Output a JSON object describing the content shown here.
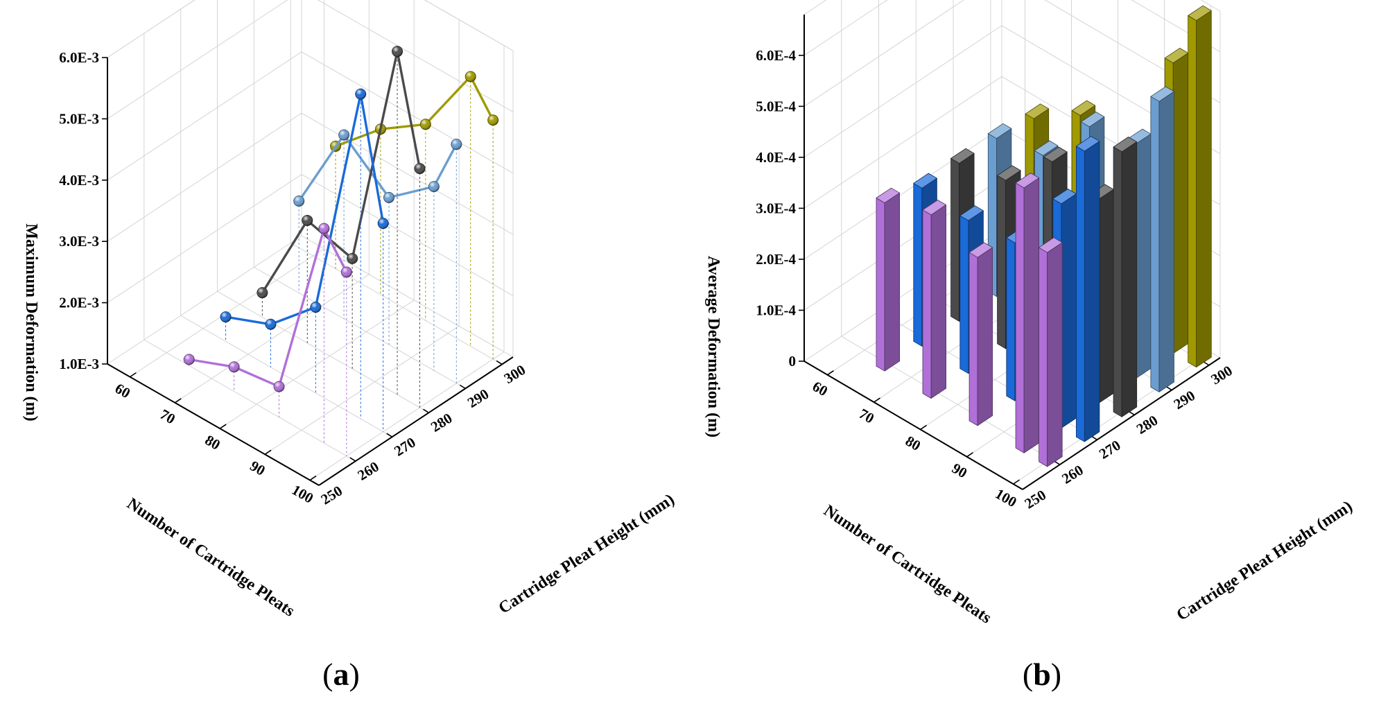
{
  "chart_data": [
    {
      "panel": "(a)",
      "panel_letter": "a",
      "type": "line",
      "projection": "3d",
      "xlabel": "Number of Cartridge Pleats",
      "ylabel": "Cartridge Pleat Height (mm)",
      "zlabel": "Maximum Deformation (m)",
      "x_ticks": [
        {
          "value": 60,
          "label": "60"
        },
        {
          "value": 70,
          "label": "70"
        },
        {
          "value": 80,
          "label": "80"
        },
        {
          "value": 90,
          "label": "90"
        },
        {
          "value": 100,
          "label": "100"
        }
      ],
      "y_ticks": [
        {
          "value": 250,
          "label": "250"
        },
        {
          "value": 260,
          "label": "260"
        },
        {
          "value": 270,
          "label": "270"
        },
        {
          "value": 280,
          "label": "280"
        },
        {
          "value": 290,
          "label": "290"
        },
        {
          "value": 300,
          "label": "300"
        }
      ],
      "z_ticks": [
        {
          "value": 0.001,
          "label": "1.0E-3"
        },
        {
          "value": 0.002,
          "label": "2.0E-3"
        },
        {
          "value": 0.003,
          "label": "3.0E-3"
        },
        {
          "value": 0.004,
          "label": "4.0E-3"
        },
        {
          "value": 0.005,
          "label": "5.0E-3"
        },
        {
          "value": 0.006,
          "label": "6.0E-3"
        }
      ],
      "xlim": [
        55,
        102
      ],
      "ylim": [
        250,
        303
      ],
      "zlim": [
        0.001,
        0.006
      ],
      "series": [
        {
          "pleat_height": 260,
          "color": "#b070d8",
          "points": [
            [
              100,
              0.004
            ],
            [
              95,
              0.0045
            ],
            [
              85,
              0.0015
            ],
            [
              75,
              0.0014
            ],
            [
              65,
              0.0011
            ]
          ]
        },
        {
          "pleat_height": 270,
          "color": "#1a6ad8",
          "points": [
            [
              100,
              0.0044
            ],
            [
              95,
              0.0063
            ],
            [
              85,
              0.0024
            ],
            [
              75,
              0.0017
            ],
            [
              65,
              0.0014
            ]
          ]
        },
        {
          "pleat_height": 280,
          "color": "#4a4a4a",
          "points": [
            [
              100,
              0.0049
            ],
            [
              95,
              0.0066
            ],
            [
              85,
              0.0028
            ],
            [
              75,
              0.003
            ],
            [
              65,
              0.0014
            ]
          ]
        },
        {
          "pleat_height": 290,
          "color": "#6a9ed0",
          "points": [
            [
              100,
              0.0049
            ],
            [
              95,
              0.004
            ],
            [
              85,
              0.0034
            ],
            [
              75,
              0.004
            ],
            [
              65,
              0.0025
            ]
          ]
        },
        {
          "pleat_height": 300,
          "color": "#a09a00",
          "points": [
            [
              100,
              0.0049
            ],
            [
              95,
              0.0054
            ],
            [
              85,
              0.0042
            ],
            [
              75,
              0.0037
            ],
            [
              65,
              0.003
            ]
          ]
        }
      ]
    },
    {
      "panel": "(b)",
      "panel_letter": "b",
      "type": "bar",
      "projection": "3d",
      "xlabel": "Number of Cartridge Pleats",
      "ylabel": "Cartridge Pleat Height (mm)",
      "zlabel": "Average Deformation (m)",
      "x_ticks": [
        {
          "value": 60,
          "label": "60"
        },
        {
          "value": 70,
          "label": "70"
        },
        {
          "value": 80,
          "label": "80"
        },
        {
          "value": 90,
          "label": "90"
        },
        {
          "value": 100,
          "label": "100"
        }
      ],
      "y_ticks": [
        {
          "value": 250,
          "label": "250"
        },
        {
          "value": 260,
          "label": "260"
        },
        {
          "value": 270,
          "label": "270"
        },
        {
          "value": 280,
          "label": "280"
        },
        {
          "value": 290,
          "label": "290"
        },
        {
          "value": 300,
          "label": "300"
        }
      ],
      "z_ticks": [
        {
          "value": 0,
          "label": "0"
        },
        {
          "value": 0.0001,
          "label": "1.0E-4"
        },
        {
          "value": 0.0002,
          "label": "2.0E-4"
        },
        {
          "value": 0.0003,
          "label": "3.0E-4"
        },
        {
          "value": 0.0004,
          "label": "4.0E-4"
        },
        {
          "value": 0.0005,
          "label": "5.0E-4"
        },
        {
          "value": 0.0006,
          "label": "6.0E-4"
        }
      ],
      "xlim": [
        55,
        102
      ],
      "ylim": [
        250,
        303
      ],
      "zlim": [
        0,
        0.00068
      ],
      "series": [
        {
          "pleat_height": 260,
          "color": "#b070d8",
          "bars": [
            [
              100,
              0.00042
            ],
            [
              95,
              0.00052
            ],
            [
              85,
              0.00033
            ],
            [
              75,
              0.00036
            ],
            [
              65,
              0.00033
            ]
          ]
        },
        {
          "pleat_height": 270,
          "color": "#1a6ad8",
          "bars": [
            [
              100,
              0.00057
            ],
            [
              95,
              0.00044
            ],
            [
              85,
              0.00031
            ],
            [
              75,
              0.0003
            ],
            [
              65,
              0.00031
            ]
          ]
        },
        {
          "pleat_height": 280,
          "color": "#4a4a4a",
          "bars": [
            [
              100,
              0.00052
            ],
            [
              95,
              0.0004
            ],
            [
              85,
              0.00042
            ],
            [
              75,
              0.00033
            ],
            [
              65,
              0.00031
            ]
          ]
        },
        {
          "pleat_height": 290,
          "color": "#6a9ed0",
          "bars": [
            [
              100,
              0.00057
            ],
            [
              95,
              0.00046
            ],
            [
              85,
              0.00044
            ],
            [
              75,
              0.00033
            ],
            [
              65,
              0.00031
            ]
          ]
        },
        {
          "pleat_height": 300,
          "color": "#a09a00",
          "bars": [
            [
              100,
              0.00068
            ],
            [
              95,
              0.00057
            ],
            [
              85,
              0.00031
            ],
            [
              75,
              0.00036
            ],
            [
              65,
              0.0003
            ]
          ]
        }
      ]
    }
  ]
}
